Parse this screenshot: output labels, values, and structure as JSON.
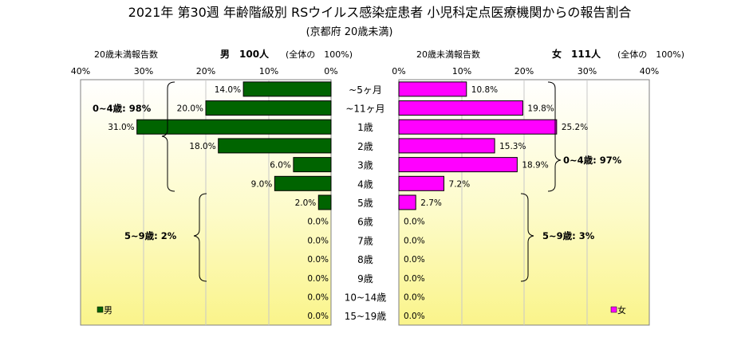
{
  "chart_data": {
    "type": "bar",
    "title": "2021年 第30週 年齢階級別 RSウイルス感染症患者 小児科定点医療機関からの報告割合",
    "subtitle": "(京都府 20歳未満)",
    "categories": [
      "~5ヶ月",
      "~11ヶ月",
      "1歳",
      "2歳",
      "3歳",
      "4歳",
      "5歳",
      "6歳",
      "7歳",
      "8歳",
      "9歳",
      "10~14歳",
      "15~19歳"
    ],
    "xlim": [
      0,
      40
    ],
    "ticks": [
      "40%",
      "30%",
      "20%",
      "10%",
      "0%"
    ],
    "ticks_right": [
      "0%",
      "10%",
      "20%",
      "30%",
      "40%"
    ],
    "series": [
      {
        "name": "男",
        "color": "#006400",
        "header_count": "20歳未満報告数",
        "header_total": "男　100人",
        "header_note": "(全体の　100%)",
        "values": [
          14.0,
          20.0,
          31.0,
          18.0,
          6.0,
          9.0,
          2.0,
          0.0,
          0.0,
          0.0,
          0.0,
          0.0,
          0.0
        ],
        "labels": [
          "14.0%",
          "20.0%",
          "31.0%",
          "18.0%",
          "6.0%",
          "9.0%",
          "2.0%",
          "0.0%",
          "0.0%",
          "0.0%",
          "0.0%",
          "0.0%",
          "0.0%"
        ]
      },
      {
        "name": "女",
        "color": "#ff00ff",
        "header_count": "20歳未満報告数",
        "header_total": "女　111人",
        "header_note": "(全体の　100%)",
        "values": [
          10.8,
          19.8,
          25.2,
          15.3,
          18.9,
          7.2,
          2.7,
          0.0,
          0.0,
          0.0,
          0.0,
          0.0,
          0.0
        ],
        "labels": [
          "10.8%",
          "19.8%",
          "25.2%",
          "15.3%",
          "18.9%",
          "7.2%",
          "2.7%",
          "0.0%",
          "0.0%",
          "0.0%",
          "0.0%",
          "0.0%",
          "0.0%"
        ]
      }
    ],
    "annotations": {
      "male_0_4": "0~4歳: 98%",
      "male_5_9": "5~9歳: 2%",
      "female_0_4": "0~4歳: 97%",
      "female_5_9": "5~9歳: 3%"
    },
    "legend_male": "男",
    "legend_female": "女",
    "grid": true
  }
}
